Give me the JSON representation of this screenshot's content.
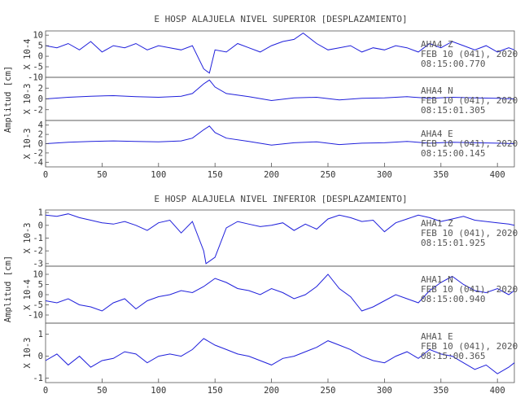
{
  "chart_data": [
    {
      "type": "line",
      "title": "E HOSP ALAJUELA NIVEL SUPERIOR [DESPLAZAMIENTO]",
      "ylabel": "Amplitud [cm]",
      "xlim": [
        0,
        415
      ],
      "xticks": [
        "0",
        "50",
        "100",
        "150",
        "200",
        "250",
        "300",
        "350",
        "400"
      ],
      "line_color": "#1f1fdb",
      "panels": [
        {
          "component": "Z",
          "scale_label": "X 10-4",
          "ylim": [
            -10,
            12
          ],
          "yticks": [
            "10",
            "5",
            "0",
            "-5",
            "-10"
          ],
          "annotation": [
            "AHA4 Z",
            "FEB 10 (041), 2020",
            "08:15:00.770"
          ],
          "x": [
            0,
            10,
            20,
            30,
            40,
            50,
            60,
            70,
            80,
            90,
            100,
            110,
            120,
            130,
            140,
            145,
            150,
            160,
            170,
            180,
            190,
            200,
            210,
            220,
            228,
            240,
            250,
            260,
            270,
            280,
            290,
            300,
            310,
            320,
            330,
            340,
            350,
            360,
            370,
            380,
            390,
            400,
            410,
            415
          ],
          "y": [
            5,
            4,
            6,
            3,
            7,
            2,
            5,
            4,
            6,
            3,
            5,
            4,
            3,
            5,
            -6,
            -8,
            3,
            2,
            6,
            4,
            2,
            5,
            7,
            8,
            11,
            6,
            3,
            4,
            5,
            2,
            4,
            3,
            5,
            4,
            2,
            6,
            4,
            7,
            5,
            3,
            5,
            2,
            4,
            3
          ]
        },
        {
          "component": "N",
          "scale_label": "X 10-3",
          "ylim": [
            -4,
            4
          ],
          "yticks": [
            "2",
            "0",
            "-2"
          ],
          "annotation": [
            "AHA4 N",
            "FEB 10 (041), 2020",
            "08:15:01.305"
          ],
          "x": [
            0,
            20,
            40,
            60,
            80,
            100,
            120,
            130,
            140,
            145,
            150,
            160,
            180,
            200,
            220,
            240,
            260,
            280,
            300,
            320,
            340,
            360,
            380,
            400,
            415
          ],
          "y": [
            0,
            0.3,
            0.5,
            0.6,
            0.4,
            0.3,
            0.5,
            1.0,
            2.8,
            3.5,
            2.2,
            1.0,
            0.4,
            -0.3,
            0.2,
            0.3,
            -0.2,
            0.1,
            0.2,
            0.4,
            0.1,
            0.3,
            0.2,
            0.1,
            0
          ]
        },
        {
          "component": "E",
          "scale_label": "X 10-3",
          "ylim": [
            -5,
            5
          ],
          "yticks": [
            "4",
            "2",
            "0",
            "-2",
            "-4"
          ],
          "annotation": [
            "AHA4 E",
            "FEB 10 (041), 2020",
            "08:15:00.145"
          ],
          "x": [
            0,
            20,
            40,
            60,
            80,
            100,
            120,
            130,
            140,
            145,
            150,
            160,
            180,
            200,
            220,
            240,
            260,
            280,
            300,
            320,
            340,
            360,
            380,
            400,
            415
          ],
          "y": [
            0,
            0.3,
            0.5,
            0.6,
            0.5,
            0.4,
            0.6,
            1.2,
            3.0,
            3.8,
            2.4,
            1.2,
            0.5,
            -0.3,
            0.2,
            0.4,
            -0.2,
            0.1,
            0.2,
            0.5,
            0.1,
            0.3,
            0.2,
            0.1,
            0
          ]
        }
      ]
    },
    {
      "type": "line",
      "title": "E HOSP ALAJUELA NIVEL INFERIOR [DESPLAZAMIENTO]",
      "ylabel": "Amplitud [cm]",
      "xlim": [
        0,
        415
      ],
      "xticks": [
        "0",
        "50",
        "100",
        "150",
        "200",
        "250",
        "300",
        "350",
        "400"
      ],
      "line_color": "#1f1fdb",
      "panels": [
        {
          "component": "Z",
          "scale_label": "X 10-3",
          "ylim": [
            -3.2,
            1.2
          ],
          "yticks": [
            "1",
            "0",
            "-1",
            "-2",
            "-3"
          ],
          "annotation": [
            "AHA1 Z",
            "FEB 10 (041), 2020",
            "08:15:01.925"
          ],
          "x": [
            0,
            10,
            20,
            30,
            40,
            50,
            60,
            70,
            80,
            90,
            100,
            110,
            120,
            130,
            140,
            142,
            150,
            160,
            170,
            180,
            190,
            200,
            210,
            220,
            230,
            240,
            250,
            260,
            270,
            280,
            290,
            300,
            310,
            320,
            330,
            340,
            350,
            360,
            370,
            380,
            390,
            400,
            410,
            415
          ],
          "y": [
            0.8,
            0.7,
            0.9,
            0.6,
            0.4,
            0.2,
            0.1,
            0.3,
            0.0,
            -0.4,
            0.2,
            0.4,
            -0.6,
            0.3,
            -2.0,
            -3.0,
            -2.5,
            -0.2,
            0.3,
            0.1,
            -0.1,
            0.0,
            0.2,
            -0.4,
            0.1,
            -0.3,
            0.5,
            0.8,
            0.6,
            0.3,
            0.4,
            -0.5,
            0.2,
            0.5,
            0.8,
            0.6,
            0.3,
            0.5,
            0.7,
            0.4,
            0.3,
            0.2,
            0.1,
            0.0
          ]
        },
        {
          "component": "N",
          "scale_label": "X 10-4",
          "ylim": [
            -14,
            14
          ],
          "yticks": [
            "10",
            "5",
            "0",
            "-5",
            "-10"
          ],
          "annotation": [
            "AHA1 N",
            "FEB 10 (041), 2020",
            "08:15:00.940"
          ],
          "x": [
            0,
            10,
            20,
            30,
            40,
            50,
            60,
            70,
            80,
            90,
            100,
            110,
            120,
            130,
            140,
            150,
            160,
            170,
            180,
            190,
            200,
            210,
            220,
            230,
            240,
            250,
            260,
            270,
            280,
            290,
            300,
            310,
            320,
            330,
            340,
            350,
            360,
            370,
            380,
            390,
            400,
            410,
            415
          ],
          "y": [
            -3,
            -4,
            -2,
            -5,
            -6,
            -8,
            -4,
            -2,
            -7,
            -3,
            -1,
            0,
            2,
            1,
            4,
            8,
            6,
            3,
            2,
            0,
            3,
            1,
            -2,
            0,
            4,
            10,
            3,
            -1,
            -8,
            -6,
            -3,
            0,
            -2,
            -4,
            2,
            6,
            9,
            5,
            2,
            1,
            3,
            0,
            2
          ]
        },
        {
          "component": "E",
          "scale_label": "X 10-3",
          "ylim": [
            -1.2,
            1.5
          ],
          "yticks": [
            "1",
            "0",
            "-1"
          ],
          "annotation": [
            "AHA1 E",
            "FEB 10 (041), 2020",
            "08:15:00.365"
          ],
          "x": [
            0,
            10,
            20,
            30,
            40,
            50,
            60,
            70,
            80,
            90,
            100,
            110,
            120,
            130,
            140,
            150,
            160,
            170,
            180,
            190,
            200,
            210,
            220,
            230,
            240,
            250,
            260,
            270,
            280,
            290,
            300,
            310,
            320,
            330,
            340,
            350,
            360,
            370,
            380,
            390,
            400,
            410,
            415
          ],
          "y": [
            -0.2,
            0.1,
            -0.4,
            0.0,
            -0.5,
            -0.2,
            -0.1,
            0.2,
            0.1,
            -0.3,
            0.0,
            0.1,
            0.0,
            0.3,
            0.8,
            0.5,
            0.3,
            0.1,
            0.0,
            -0.2,
            -0.4,
            -0.1,
            0.0,
            0.2,
            0.4,
            0.7,
            0.5,
            0.3,
            0.0,
            -0.2,
            -0.3,
            0.0,
            0.2,
            -0.1,
            0.3,
            0.1,
            0.0,
            -0.3,
            -0.6,
            -0.4,
            -0.8,
            -0.5,
            -0.3
          ]
        }
      ]
    }
  ]
}
